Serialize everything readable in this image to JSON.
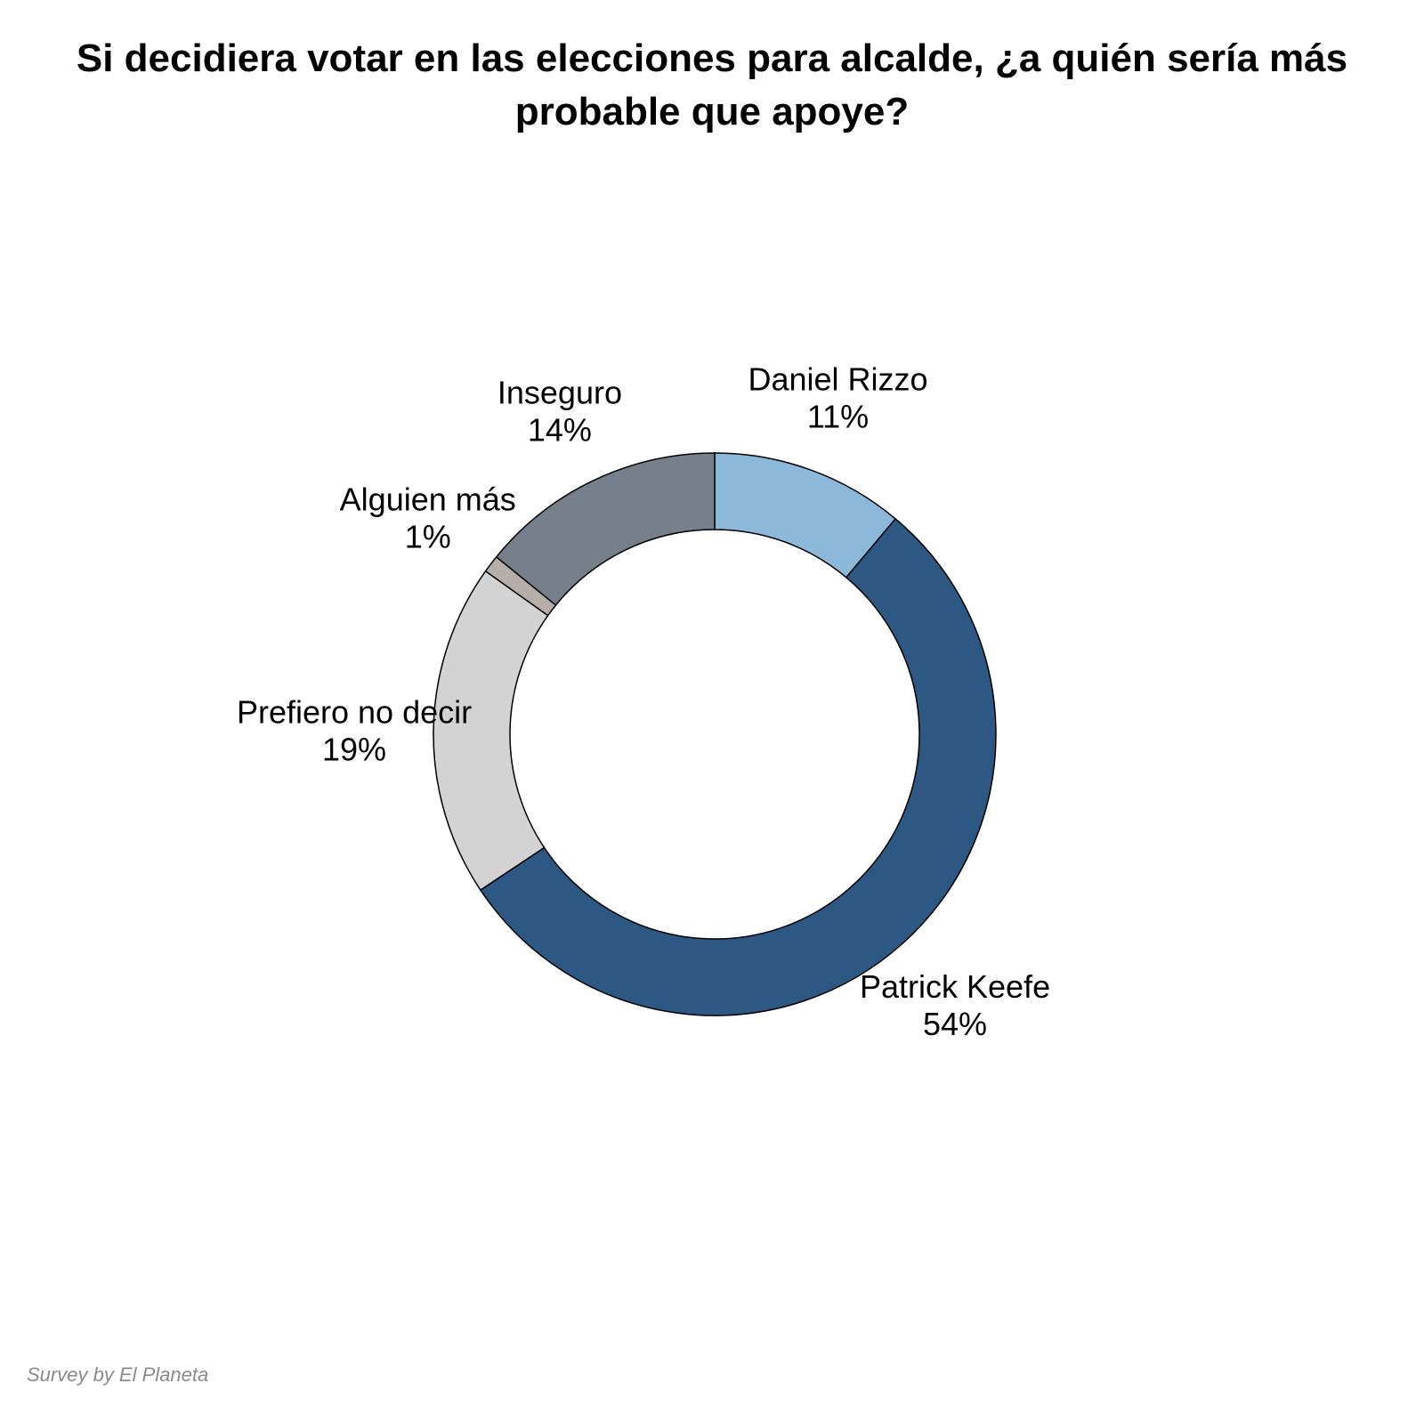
{
  "chart_data": {
    "type": "pie",
    "title": "Si decidiera votar en las elecciones para alcalde, ¿a quién sería más probable que apoye?",
    "donut": true,
    "slices": [
      {
        "label": "Daniel Rizzo",
        "value": 11,
        "value_label": "11%",
        "color": "#8cb8da"
      },
      {
        "label": "Patrick Keefe",
        "value": 54,
        "value_label": "54%",
        "color": "#2c5883"
      },
      {
        "label": "Prefiero no decir",
        "value": 19,
        "value_label": "19%",
        "color": "#d3d3d3"
      },
      {
        "label": "Alguien más",
        "value": 1,
        "value_label": "1%",
        "color": "#b6afa9"
      },
      {
        "label": "Inseguro",
        "value": 14,
        "value_label": "14%",
        "color": "#787f8c"
      }
    ],
    "source": "Survey by El Planeta"
  }
}
